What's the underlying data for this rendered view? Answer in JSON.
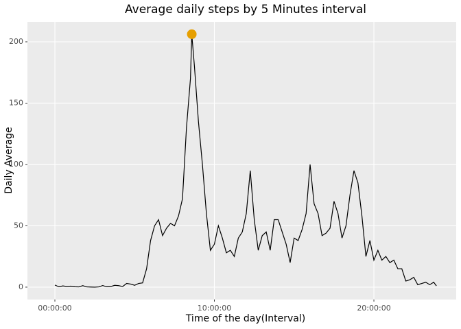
{
  "chart_data": {
    "type": "line",
    "title": "Average daily steps by 5 Minutes interval",
    "x_label": "Time of the day(Interval)",
    "y_label": "Daily Average",
    "color": "#000000",
    "x": [
      0,
      0.25,
      0.5,
      0.75,
      1,
      1.25,
      1.5,
      1.75,
      2,
      2.25,
      2.5,
      2.75,
      3,
      3.25,
      3.5,
      3.75,
      4,
      4.25,
      4.5,
      4.75,
      5,
      5.25,
      5.5,
      5.75,
      6,
      6.25,
      6.5,
      6.75,
      7,
      7.25,
      7.5,
      7.75,
      8,
      8.25,
      8.5,
      8.583,
      8.75,
      9,
      9.25,
      9.5,
      9.75,
      10,
      10.25,
      10.5,
      10.75,
      11,
      11.25,
      11.5,
      11.75,
      12,
      12.25,
      12.5,
      12.75,
      13,
      13.25,
      13.5,
      13.75,
      14,
      14.25,
      14.5,
      14.75,
      15,
      15.25,
      15.5,
      15.75,
      16,
      16.25,
      16.5,
      16.75,
      17,
      17.25,
      17.5,
      17.75,
      18,
      18.25,
      18.5,
      18.75,
      19,
      19.25,
      19.5,
      19.75,
      20,
      20.25,
      20.5,
      20.75,
      21,
      21.25,
      21.5,
      21.75,
      22,
      22.25,
      22.5,
      22.75,
      23,
      23.25,
      23.5,
      23.75,
      23.92
    ],
    "values": [
      1.7,
      0.3,
      1.0,
      0.5,
      0.8,
      0.3,
      0.2,
      1.2,
      0.2,
      0.1,
      0,
      0.2,
      1.3,
      0.3,
      0.5,
      1.5,
      1.2,
      0.5,
      3.0,
      2.5,
      1.5,
      3.0,
      3.5,
      15,
      38,
      50,
      55,
      42,
      48,
      52,
      50,
      58,
      72,
      130,
      170,
      206.2,
      180,
      135,
      100,
      60,
      30,
      35,
      50,
      40,
      28,
      30,
      25,
      40,
      45,
      60,
      95,
      55,
      30,
      42,
      45,
      30,
      55,
      55,
      45,
      35,
      20,
      40,
      38,
      47,
      60,
      100,
      68,
      60,
      42,
      44,
      48,
      70,
      60,
      40,
      50,
      75,
      95,
      85,
      58,
      25,
      38,
      22,
      30,
      22,
      25,
      20,
      22,
      15,
      15,
      5,
      6,
      8,
      2,
      3,
      4,
      2,
      4,
      1
    ],
    "highlight": {
      "x": 8.583,
      "value": 206.2,
      "color": "#e69f00"
    },
    "xlim": [
      -1.72,
      25.16
    ],
    "ylim": [
      -10.1,
      216.2
    ],
    "xticks": [
      {
        "value": 0,
        "label": "00:00:00"
      },
      {
        "value": 10,
        "label": "10:00:00"
      },
      {
        "value": 20,
        "label": "20:00:00"
      }
    ],
    "yticks": [
      0,
      50,
      100,
      150,
      200
    ],
    "grid": true
  }
}
